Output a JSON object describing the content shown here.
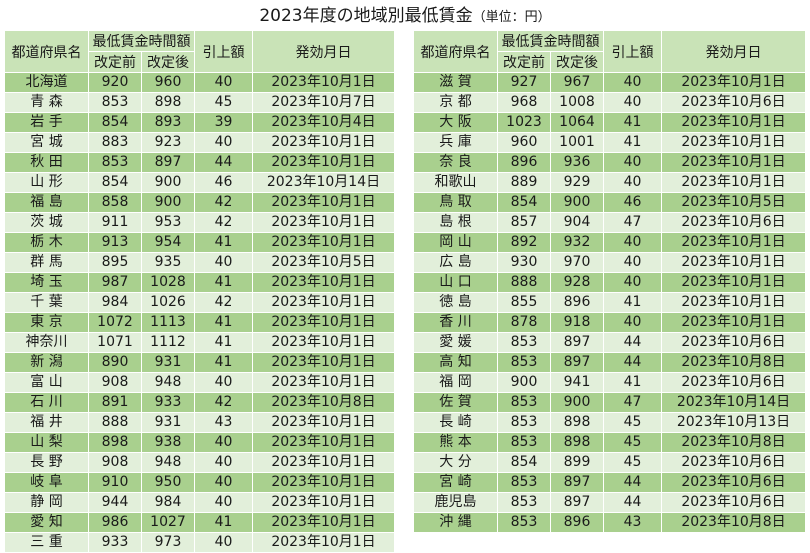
{
  "title": "2023年度の地域別最低賃金",
  "title_unit": "（単位：円）",
  "headers": {
    "prefecture": "都道府県名",
    "min_wage": "最低賃金時間額",
    "before": "改定前",
    "after": "改定後",
    "increase": "引上額",
    "effective_date": "発効月日"
  },
  "left_rows": [
    {
      "pref": "北海道",
      "before": "920",
      "after": "960",
      "inc": "40",
      "date": "2023年10月1日"
    },
    {
      "pref": "青 森",
      "before": "853",
      "after": "898",
      "inc": "45",
      "date": "2023年10月7日"
    },
    {
      "pref": "岩 手",
      "before": "854",
      "after": "893",
      "inc": "39",
      "date": "2023年10月4日"
    },
    {
      "pref": "宮 城",
      "before": "883",
      "after": "923",
      "inc": "40",
      "date": "2023年10月1日"
    },
    {
      "pref": "秋 田",
      "before": "853",
      "after": "897",
      "inc": "44",
      "date": "2023年10月1日"
    },
    {
      "pref": "山 形",
      "before": "854",
      "after": "900",
      "inc": "46",
      "date": "2023年10月14日"
    },
    {
      "pref": "福 島",
      "before": "858",
      "after": "900",
      "inc": "42",
      "date": "2023年10月1日"
    },
    {
      "pref": "茨 城",
      "before": "911",
      "after": "953",
      "inc": "42",
      "date": "2023年10月1日"
    },
    {
      "pref": "栃 木",
      "before": "913",
      "after": "954",
      "inc": "41",
      "date": "2023年10月1日"
    },
    {
      "pref": "群 馬",
      "before": "895",
      "after": "935",
      "inc": "40",
      "date": "2023年10月5日"
    },
    {
      "pref": "埼 玉",
      "before": "987",
      "after": "1028",
      "inc": "41",
      "date": "2023年10月1日"
    },
    {
      "pref": "千 葉",
      "before": "984",
      "after": "1026",
      "inc": "42",
      "date": "2023年10月1日"
    },
    {
      "pref": "東 京",
      "before": "1072",
      "after": "1113",
      "inc": "41",
      "date": "2023年10月1日"
    },
    {
      "pref": "神奈川",
      "before": "1071",
      "after": "1112",
      "inc": "41",
      "date": "2023年10月1日"
    },
    {
      "pref": "新 潟",
      "before": "890",
      "after": "931",
      "inc": "41",
      "date": "2023年10月1日"
    },
    {
      "pref": "富 山",
      "before": "908",
      "after": "948",
      "inc": "40",
      "date": "2023年10月1日"
    },
    {
      "pref": "石 川",
      "before": "891",
      "after": "933",
      "inc": "42",
      "date": "2023年10月8日"
    },
    {
      "pref": "福 井",
      "before": "888",
      "after": "931",
      "inc": "43",
      "date": "2023年10月1日"
    },
    {
      "pref": "山 梨",
      "before": "898",
      "after": "938",
      "inc": "40",
      "date": "2023年10月1日"
    },
    {
      "pref": "長 野",
      "before": "908",
      "after": "948",
      "inc": "40",
      "date": "2023年10月1日"
    },
    {
      "pref": "岐 阜",
      "before": "910",
      "after": "950",
      "inc": "40",
      "date": "2023年10月1日"
    },
    {
      "pref": "静 岡",
      "before": "944",
      "after": "984",
      "inc": "40",
      "date": "2023年10月1日"
    },
    {
      "pref": "愛 知",
      "before": "986",
      "after": "1027",
      "inc": "41",
      "date": "2023年10月1日"
    },
    {
      "pref": "三 重",
      "before": "933",
      "after": "973",
      "inc": "40",
      "date": "2023年10月1日"
    }
  ],
  "right_rows": [
    {
      "pref": "滋 賀",
      "before": "927",
      "after": "967",
      "inc": "40",
      "date": "2023年10月1日"
    },
    {
      "pref": "京 都",
      "before": "968",
      "after": "1008",
      "inc": "40",
      "date": "2023年10月6日"
    },
    {
      "pref": "大 阪",
      "before": "1023",
      "after": "1064",
      "inc": "41",
      "date": "2023年10月1日"
    },
    {
      "pref": "兵 庫",
      "before": "960",
      "after": "1001",
      "inc": "41",
      "date": "2023年10月1日"
    },
    {
      "pref": "奈 良",
      "before": "896",
      "after": "936",
      "inc": "40",
      "date": "2023年10月1日"
    },
    {
      "pref": "和歌山",
      "before": "889",
      "after": "929",
      "inc": "40",
      "date": "2023年10月1日"
    },
    {
      "pref": "鳥 取",
      "before": "854",
      "after": "900",
      "inc": "46",
      "date": "2023年10月5日"
    },
    {
      "pref": "島 根",
      "before": "857",
      "after": "904",
      "inc": "47",
      "date": "2023年10月6日"
    },
    {
      "pref": "岡 山",
      "before": "892",
      "after": "932",
      "inc": "40",
      "date": "2023年10月1日"
    },
    {
      "pref": "広 島",
      "before": "930",
      "after": "970",
      "inc": "40",
      "date": "2023年10月1日"
    },
    {
      "pref": "山 口",
      "before": "888",
      "after": "928",
      "inc": "40",
      "date": "2023年10月1日"
    },
    {
      "pref": "徳 島",
      "before": "855",
      "after": "896",
      "inc": "41",
      "date": "2023年10月1日"
    },
    {
      "pref": "香 川",
      "before": "878",
      "after": "918",
      "inc": "40",
      "date": "2023年10月1日"
    },
    {
      "pref": "愛 媛",
      "before": "853",
      "after": "897",
      "inc": "44",
      "date": "2023年10月6日"
    },
    {
      "pref": "高 知",
      "before": "853",
      "after": "897",
      "inc": "44",
      "date": "2023年10月8日"
    },
    {
      "pref": "福 岡",
      "before": "900",
      "after": "941",
      "inc": "41",
      "date": "2023年10月6日"
    },
    {
      "pref": "佐 賀",
      "before": "853",
      "after": "900",
      "inc": "47",
      "date": "2023年10月14日"
    },
    {
      "pref": "長 崎",
      "before": "853",
      "after": "898",
      "inc": "45",
      "date": "2023年10月13日"
    },
    {
      "pref": "熊 本",
      "before": "853",
      "after": "898",
      "inc": "45",
      "date": "2023年10月8日"
    },
    {
      "pref": "大 分",
      "before": "854",
      "after": "899",
      "inc": "45",
      "date": "2023年10月6日"
    },
    {
      "pref": "宮 崎",
      "before": "853",
      "after": "897",
      "inc": "44",
      "date": "2023年10月6日"
    },
    {
      "pref": "鹿児島",
      "before": "853",
      "after": "897",
      "inc": "44",
      "date": "2023年10月6日"
    },
    {
      "pref": "沖 縄",
      "before": "853",
      "after": "896",
      "inc": "43",
      "date": "2023年10月8日"
    }
  ],
  "colors": {
    "header_bg": "#c9e3b7",
    "row_dark": "#a9d08e",
    "row_light": "#e2efda"
  }
}
